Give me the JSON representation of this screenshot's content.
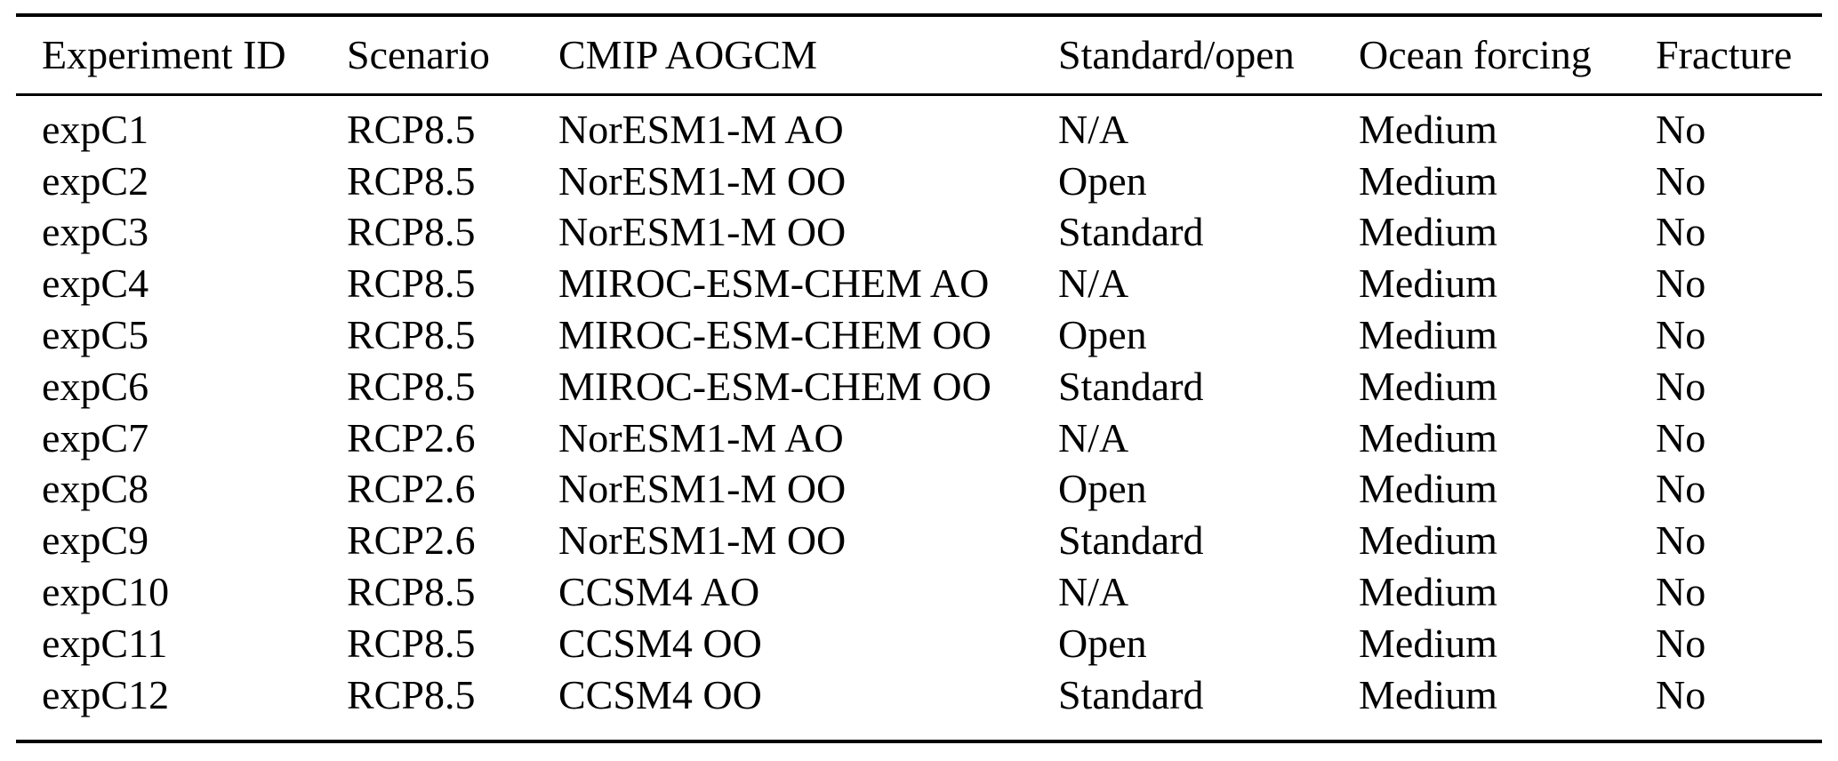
{
  "table": {
    "columns": [
      "Experiment ID",
      "Scenario",
      "CMIP AOGCM",
      "Standard/open",
      "Ocean forcing",
      "Fracture"
    ],
    "rows": [
      [
        "expC1",
        "RCP8.5",
        "NorESM1-M AO",
        "N/A",
        "Medium",
        "No"
      ],
      [
        "expC2",
        "RCP8.5",
        "NorESM1-M OO",
        "Open",
        "Medium",
        "No"
      ],
      [
        "expC3",
        "RCP8.5",
        "NorESM1-M OO",
        "Standard",
        "Medium",
        "No"
      ],
      [
        "expC4",
        "RCP8.5",
        "MIROC-ESM-CHEM AO",
        "N/A",
        "Medium",
        "No"
      ],
      [
        "expC5",
        "RCP8.5",
        "MIROC-ESM-CHEM OO",
        "Open",
        "Medium",
        "No"
      ],
      [
        "expC6",
        "RCP8.5",
        "MIROC-ESM-CHEM OO",
        "Standard",
        "Medium",
        "No"
      ],
      [
        "expC7",
        "RCP2.6",
        "NorESM1-M AO",
        "N/A",
        "Medium",
        "No"
      ],
      [
        "expC8",
        "RCP2.6",
        "NorESM1-M OO",
        "Open",
        "Medium",
        "No"
      ],
      [
        "expC9",
        "RCP2.6",
        "NorESM1-M OO",
        "Standard",
        "Medium",
        "No"
      ],
      [
        "expC10",
        "RCP8.5",
        "CCSM4 AO",
        "N/A",
        "Medium",
        "No"
      ],
      [
        "expC11",
        "RCP8.5",
        "CCSM4 OO",
        "Open",
        "Medium",
        "No"
      ],
      [
        "expC12",
        "RCP8.5",
        "CCSM4 OO",
        "Standard",
        "Medium",
        "No"
      ]
    ]
  },
  "colors": {
    "text": "#000000",
    "background": "#ffffff",
    "rule": "#000000"
  }
}
